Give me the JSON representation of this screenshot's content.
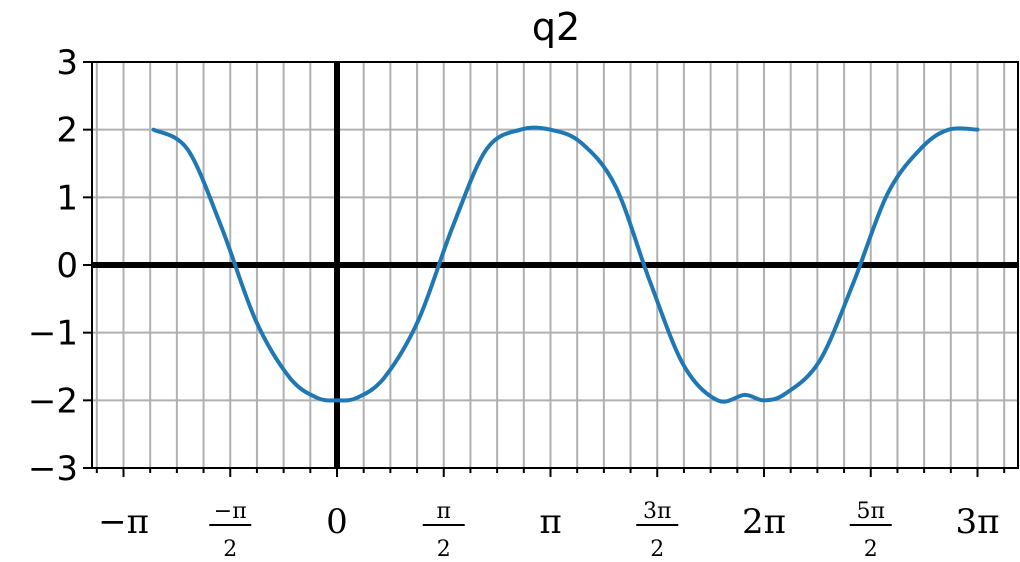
{
  "chart_data": {
    "type": "line",
    "title": "q2",
    "xlabel": "",
    "ylabel": "",
    "xlim": [
      -3.14159,
      9.42478
    ],
    "ylim": [
      -3,
      3
    ],
    "grid": true,
    "y_ticks": [
      {
        "value": 3,
        "label": "3"
      },
      {
        "value": 2,
        "label": "2"
      },
      {
        "value": 1,
        "label": "1"
      },
      {
        "value": 0,
        "label": "0"
      },
      {
        "value": -1,
        "label": "−1"
      },
      {
        "value": -2,
        "label": "−2"
      },
      {
        "value": -3,
        "label": "−3"
      }
    ],
    "x_ticks": [
      {
        "value": -3.14159,
        "label": "−π"
      },
      {
        "value": -1.5708,
        "num": "−π",
        "den": "2"
      },
      {
        "value": 0,
        "label": "0"
      },
      {
        "value": 1.5708,
        "num": "π",
        "den": "2"
      },
      {
        "value": 3.14159,
        "label": "π"
      },
      {
        "value": 4.71239,
        "num": "3π",
        "den": "2"
      },
      {
        "value": 6.28319,
        "label": "2π"
      },
      {
        "value": 7.85398,
        "num": "5π",
        "den": "2"
      },
      {
        "value": 9.42478,
        "label": "3π"
      }
    ],
    "series": [
      {
        "color": "#1f77b4",
        "x": [
          -2.7,
          -2.2,
          -1.7,
          -1.2,
          -0.7,
          -0.3,
          0,
          0.3,
          0.7,
          1.2,
          1.7,
          2.2,
          2.7,
          3.14159,
          3.6,
          4.1,
          4.6,
          5.1,
          5.6,
          6.0,
          6.28319,
          6.6,
          7.1,
          7.6,
          8.1,
          8.6,
          9.0,
          9.42478
        ],
        "y": [
          2.0,
          1.71,
          0.56,
          -0.81,
          -1.66,
          -1.96,
          -2.0,
          -1.96,
          -1.66,
          -0.81,
          0.56,
          1.71,
          2.0,
          2.0,
          1.8,
          1.16,
          -0.23,
          -1.48,
          -2.0,
          -1.92,
          -2.0,
          -1.9,
          -1.42,
          -0.26,
          1.05,
          1.73,
          2.0,
          2.0
        ]
      }
    ]
  }
}
